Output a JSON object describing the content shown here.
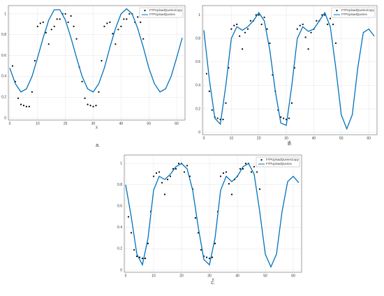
{
  "chart_data": [
    {
      "type": "scatter",
      "caption": "a.",
      "xlabel": "X",
      "xlim": [
        -0.5,
        63
      ],
      "ylim": [
        -0.02,
        1.08
      ],
      "xticks": [
        0,
        10,
        20,
        30,
        40,
        50,
        60
      ],
      "yticks": [
        0,
        0.2,
        0.4,
        0.6,
        0.8,
        1
      ],
      "grid": true,
      "legend": "upper right",
      "series": [
        {
          "name": "FTPUploadQueriesCopy",
          "color": "#000000",
          "style": "markers",
          "x": [
            1,
            2,
            3,
            4,
            5,
            6,
            7,
            8,
            9,
            10,
            11,
            12,
            13,
            14,
            15,
            16,
            17,
            18,
            19,
            20,
            21,
            22,
            23,
            24,
            25,
            26,
            27,
            28,
            29,
            30,
            31,
            32,
            33,
            34,
            35,
            36,
            37,
            38,
            39,
            40,
            41,
            42,
            43,
            44,
            45,
            46,
            47,
            48
          ],
          "values": [
            0.5,
            0.35,
            0.19,
            0.13,
            0.12,
            0.11,
            0.11,
            0.25,
            0.55,
            0.88,
            0.91,
            0.92,
            0.82,
            0.71,
            0.85,
            0.88,
            0.95,
            0.95,
            1.0,
            1.0,
            0.92,
            0.98,
            0.88,
            0.76,
            0.49,
            0.35,
            0.19,
            0.13,
            0.12,
            0.11,
            0.12,
            0.25,
            0.55,
            0.88,
            0.91,
            0.92,
            0.81,
            0.71,
            0.85,
            0.88,
            0.95,
            0.95,
            1.0,
            1.0,
            0.92,
            0.97,
            0.92,
            0.76
          ]
        },
        {
          "name": "FTPUploadQueries",
          "color": "#0072bd",
          "style": "line",
          "x": [
            0,
            2,
            4,
            6,
            8,
            10,
            12,
            14,
            16,
            18,
            20,
            22,
            24,
            26,
            28,
            30,
            32,
            34,
            36,
            38,
            40,
            42,
            44,
            46,
            48,
            50,
            52,
            54,
            56,
            58,
            60,
            62
          ],
          "values": [
            0.48,
            0.33,
            0.25,
            0.28,
            0.4,
            0.58,
            0.77,
            0.94,
            1.04,
            1.04,
            0.94,
            0.77,
            0.58,
            0.4,
            0.28,
            0.25,
            0.33,
            0.48,
            0.68,
            0.86,
            1.0,
            1.05,
            1.0,
            0.86,
            0.68,
            0.48,
            0.33,
            0.25,
            0.28,
            0.4,
            0.58,
            0.77
          ]
        }
      ]
    },
    {
      "type": "scatter",
      "caption": "b.",
      "xlabel": "X",
      "xlim": [
        -0.5,
        63
      ],
      "ylim": [
        -0.02,
        1.08
      ],
      "xticks": [
        0,
        10,
        20,
        30,
        40,
        50,
        60
      ],
      "yticks": [
        0,
        0.2,
        0.4,
        0.6,
        0.8,
        1
      ],
      "grid": true,
      "legend": "upper right",
      "series": [
        {
          "name": "FTPUploadQueriesCopy",
          "color": "#000000",
          "style": "markers",
          "x": [
            1,
            2,
            3,
            4,
            5,
            6,
            7,
            8,
            9,
            10,
            11,
            12,
            13,
            14,
            15,
            16,
            17,
            18,
            19,
            20,
            21,
            22,
            23,
            24,
            25,
            26,
            27,
            28,
            29,
            30,
            31,
            32,
            33,
            34,
            35,
            36,
            37,
            38,
            39,
            40,
            41,
            42,
            43,
            44,
            45,
            46,
            47,
            48
          ],
          "values": [
            0.5,
            0.35,
            0.19,
            0.13,
            0.12,
            0.11,
            0.11,
            0.25,
            0.55,
            0.88,
            0.91,
            0.92,
            0.82,
            0.71,
            0.85,
            0.88,
            0.95,
            0.95,
            1.0,
            1.0,
            0.92,
            0.98,
            0.88,
            0.76,
            0.49,
            0.35,
            0.19,
            0.13,
            0.12,
            0.11,
            0.12,
            0.25,
            0.55,
            0.88,
            0.91,
            0.92,
            0.81,
            0.71,
            0.85,
            0.88,
            0.95,
            0.95,
            1.0,
            1.0,
            0.92,
            0.97,
            0.92,
            0.76
          ]
        },
        {
          "name": "FTPUploadQueries",
          "color": "#0072bd",
          "style": "line",
          "x": [
            0,
            2,
            4,
            6,
            8,
            10,
            12,
            14,
            16,
            18,
            20,
            22,
            24,
            26,
            28,
            30,
            32,
            34,
            36,
            38,
            40,
            42,
            44,
            46,
            48,
            50,
            52,
            54,
            56,
            58,
            60,
            62
          ],
          "values": [
            0.87,
            0.45,
            0.12,
            0.07,
            0.4,
            0.8,
            0.9,
            0.87,
            0.9,
            0.95,
            1.02,
            0.95,
            0.7,
            0.35,
            0.08,
            0.06,
            0.4,
            0.8,
            0.9,
            0.86,
            0.88,
            0.95,
            1.02,
            0.9,
            0.55,
            0.15,
            0.03,
            0.15,
            0.55,
            0.85,
            0.88,
            0.82
          ]
        }
      ]
    },
    {
      "type": "scatter",
      "caption": "c.",
      "xlabel": "X",
      "xlim": [
        -0.5,
        63
      ],
      "ylim": [
        -0.02,
        1.08
      ],
      "xticks": [
        0,
        10,
        20,
        30,
        40,
        50,
        60
      ],
      "yticks": [
        0,
        0.2,
        0.4,
        0.6,
        0.8,
        1
      ],
      "grid": true,
      "legend": "upper right",
      "series": [
        {
          "name": "FTPUploadQueriesCopy",
          "color": "#000000",
          "style": "markers",
          "x": [
            1,
            2,
            3,
            4,
            5,
            6,
            7,
            8,
            9,
            10,
            11,
            12,
            13,
            14,
            15,
            16,
            17,
            18,
            19,
            20,
            21,
            22,
            23,
            24,
            25,
            26,
            27,
            28,
            29,
            30,
            31,
            32,
            33,
            34,
            35,
            36,
            37,
            38,
            39,
            40,
            41,
            42,
            43,
            44,
            45,
            46,
            47,
            48
          ],
          "values": [
            0.5,
            0.35,
            0.19,
            0.13,
            0.12,
            0.11,
            0.11,
            0.25,
            0.55,
            0.88,
            0.91,
            0.92,
            0.82,
            0.71,
            0.85,
            0.88,
            0.95,
            0.95,
            1.0,
            1.0,
            0.92,
            0.98,
            0.88,
            0.76,
            0.49,
            0.35,
            0.19,
            0.13,
            0.12,
            0.11,
            0.12,
            0.25,
            0.55,
            0.88,
            0.91,
            0.92,
            0.81,
            0.71,
            0.85,
            0.88,
            0.95,
            0.95,
            1.0,
            1.0,
            0.92,
            0.97,
            0.92,
            0.76
          ]
        },
        {
          "name": "FTPUploadQueries",
          "color": "#0072bd",
          "style": "line",
          "x": [
            0,
            2,
            4,
            6,
            8,
            10,
            12,
            14,
            16,
            18,
            20,
            22,
            24,
            26,
            28,
            30,
            32,
            34,
            36,
            38,
            40,
            42,
            44,
            46,
            48,
            50,
            52,
            54,
            56,
            58,
            60,
            62
          ],
          "values": [
            0.8,
            0.5,
            0.15,
            0.05,
            0.3,
            0.75,
            0.88,
            0.85,
            0.9,
            0.97,
            1.0,
            0.95,
            0.75,
            0.4,
            0.1,
            0.05,
            0.3,
            0.75,
            0.88,
            0.83,
            0.88,
            0.97,
            1.0,
            0.9,
            0.55,
            0.15,
            0.03,
            0.15,
            0.55,
            0.83,
            0.88,
            0.82
          ]
        }
      ]
    }
  ]
}
